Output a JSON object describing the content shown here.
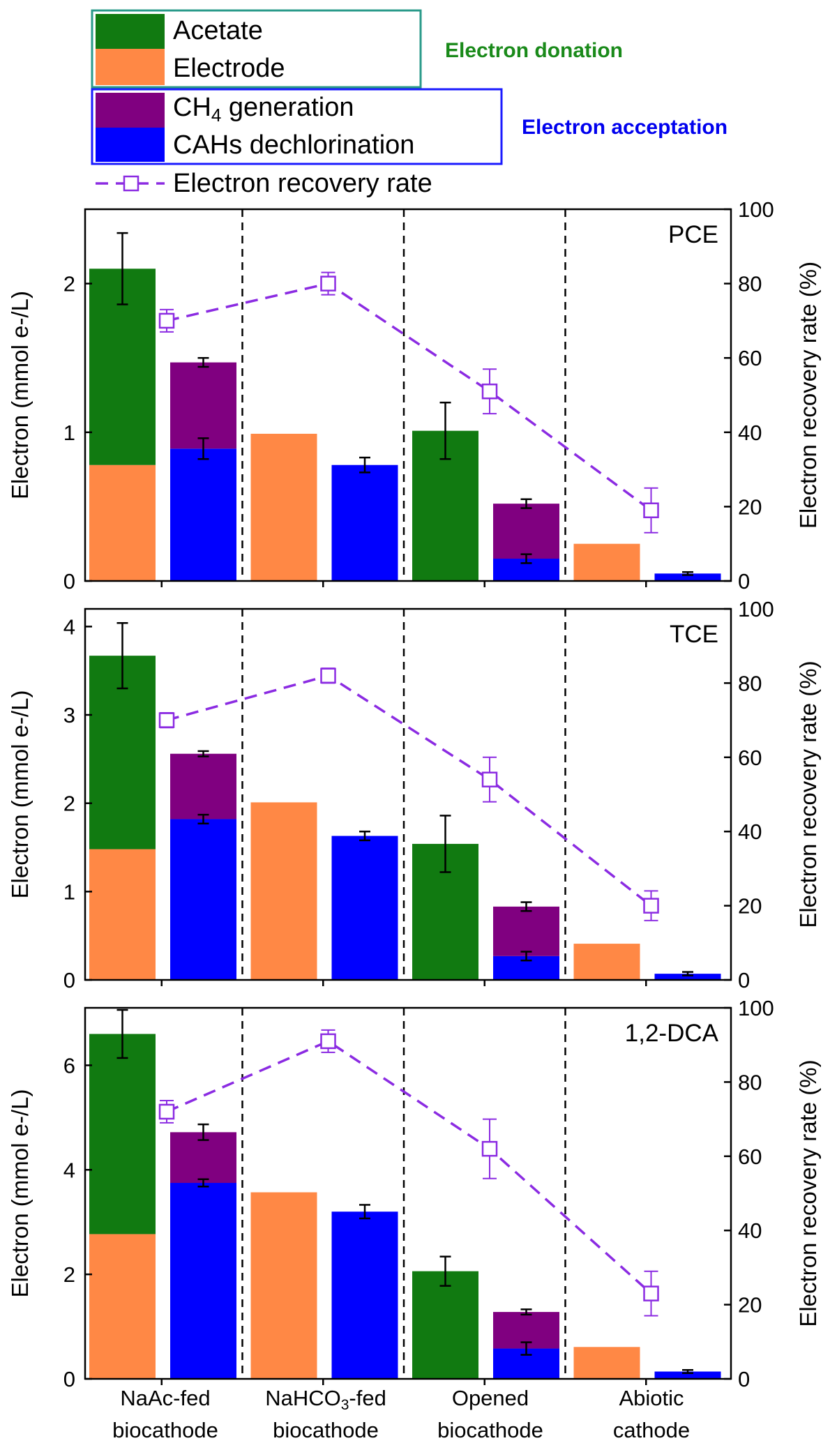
{
  "legend": {
    "donation_label": "Electron donation",
    "acceptation_label": "Electron acceptation",
    "items": [
      {
        "key": "acetate",
        "label": "Acetate"
      },
      {
        "key": "electrode",
        "label": "Electrode"
      },
      {
        "key": "ch4",
        "label_main": "CH",
        "label_sub": "4",
        "label_rest": " generation"
      },
      {
        "key": "cah",
        "label": "CAHs dechlorination"
      },
      {
        "key": "recovery",
        "label": "Electron recovery rate"
      }
    ]
  },
  "colors": {
    "acetate": "#117a11",
    "electrode": "#ff8845",
    "ch4": "#800080",
    "cah": "#0000ff",
    "recovery": "#8b2be2",
    "donation_text": "#1a8a1a",
    "acceptation_text": "#0000ee",
    "donation_box": "#2a9a8a",
    "acceptation_box": "#1a1aff"
  },
  "groups": [
    {
      "line1": "NaAc-fed",
      "line2": "biocathode"
    },
    {
      "line1": "NaHCO",
      "line1_sub": "3",
      "line1_rest": "-fed",
      "line2": "biocathode"
    },
    {
      "line1": "Opened",
      "line2": "biocathode"
    },
    {
      "line1": "Abiotic",
      "line2": "cathode"
    }
  ],
  "chart_data": [
    {
      "type": "bar",
      "title": "PCE",
      "ylabel": "Electron (mmol e-/L)",
      "y2label": "Electron recovery rate (%)",
      "ylim": [
        0,
        2.5
      ],
      "yticks": [
        0,
        1,
        2
      ],
      "y2lim": [
        0,
        100
      ],
      "y2ticks": [
        0,
        20,
        40,
        60,
        80,
        100
      ],
      "categories": [
        "NaAc-fed biocathode",
        "NaHCO3-fed biocathode",
        "Opened biocathode",
        "Abiotic cathode"
      ],
      "donation": [
        {
          "electrode": 0.78,
          "acetate": 1.32,
          "err": 0.24
        },
        {
          "electrode": 0.99,
          "acetate": 0,
          "err": null
        },
        {
          "electrode": 0,
          "acetate": 1.01,
          "err": 0.19
        },
        {
          "electrode": 0.25,
          "acetate": 0,
          "err": null
        }
      ],
      "acceptation": [
        {
          "cah": 0.89,
          "cah_err": 0.07,
          "ch4": 0.58,
          "total_err": 0.03
        },
        {
          "cah": 0.78,
          "cah_err": 0.05,
          "ch4": 0,
          "total_err": null
        },
        {
          "cah": 0.15,
          "cah_err": 0.03,
          "ch4": 0.37,
          "total_err": 0.03
        },
        {
          "cah": 0.05,
          "cah_err": 0.01,
          "ch4": 0,
          "total_err": null
        }
      ],
      "recovery": [
        {
          "value": 70,
          "err": 3
        },
        {
          "value": 80,
          "err": 3
        },
        {
          "value": 51,
          "err": 6
        },
        {
          "value": 19,
          "err": 6
        }
      ]
    },
    {
      "type": "bar",
      "title": "TCE",
      "ylabel": "Electron (mmol e-/L)",
      "y2label": "Electron recovery rate (%)",
      "ylim": [
        0,
        4.2
      ],
      "yticks": [
        0,
        1,
        2,
        3,
        4
      ],
      "y2lim": [
        0,
        100
      ],
      "y2ticks": [
        0,
        20,
        40,
        60,
        80,
        100
      ],
      "categories": [
        "NaAc-fed biocathode",
        "NaHCO3-fed biocathode",
        "Opened biocathode",
        "Abiotic cathode"
      ],
      "donation": [
        {
          "electrode": 1.48,
          "acetate": 2.19,
          "err": 0.37
        },
        {
          "electrode": 2.01,
          "acetate": 0,
          "err": null
        },
        {
          "electrode": 0,
          "acetate": 1.54,
          "err": 0.32
        },
        {
          "electrode": 0.41,
          "acetate": 0,
          "err": null
        }
      ],
      "acceptation": [
        {
          "cah": 1.82,
          "cah_err": 0.05,
          "ch4": 0.74,
          "total_err": 0.03
        },
        {
          "cah": 1.63,
          "cah_err": 0.05,
          "ch4": 0,
          "total_err": null
        },
        {
          "cah": 0.27,
          "cah_err": 0.05,
          "ch4": 0.56,
          "total_err": 0.05
        },
        {
          "cah": 0.07,
          "cah_err": 0.02,
          "ch4": 0,
          "total_err": null
        }
      ],
      "recovery": [
        {
          "value": 70,
          "err": 2
        },
        {
          "value": 82,
          "err": 2
        },
        {
          "value": 54,
          "err": 6
        },
        {
          "value": 20,
          "err": 4
        }
      ]
    },
    {
      "type": "bar",
      "title": "1,2-DCA",
      "ylabel": "Electron (mmol e-/L)",
      "y2label": "Electron recovery rate (%)",
      "ylim": [
        0,
        7.1
      ],
      "yticks": [
        0,
        2,
        4,
        6
      ],
      "y2lim": [
        0,
        100
      ],
      "y2ticks": [
        0,
        20,
        40,
        60,
        80,
        100
      ],
      "categories": [
        "NaAc-fed biocathode",
        "NaHCO3-fed biocathode",
        "Opened biocathode",
        "Abiotic cathode"
      ],
      "donation": [
        {
          "electrode": 2.77,
          "acetate": 3.83,
          "err": 0.46
        },
        {
          "electrode": 3.57,
          "acetate": 0,
          "err": null
        },
        {
          "electrode": 0,
          "acetate": 2.06,
          "err": 0.28
        },
        {
          "electrode": 0.61,
          "acetate": 0,
          "err": null
        }
      ],
      "acceptation": [
        {
          "cah": 3.75,
          "cah_err": 0.07,
          "ch4": 0.97,
          "total_err": 0.15
        },
        {
          "cah": 3.2,
          "cah_err": 0.13,
          "ch4": 0,
          "total_err": null
        },
        {
          "cah": 0.58,
          "cah_err": 0.12,
          "ch4": 0.7,
          "total_err": 0.05
        },
        {
          "cah": 0.14,
          "cah_err": 0.03,
          "ch4": 0,
          "total_err": null
        }
      ],
      "recovery": [
        {
          "value": 72,
          "err": 3
        },
        {
          "value": 91,
          "err": 3
        },
        {
          "value": 62,
          "err": 8
        },
        {
          "value": 23,
          "err": 6
        }
      ]
    }
  ]
}
